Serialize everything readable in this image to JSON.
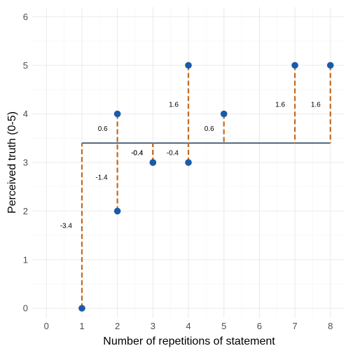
{
  "chart_data": {
    "type": "scatter",
    "title": "",
    "xlabel": "Number of repetitions of statement",
    "ylabel": "Perceived truth (0-5)",
    "x_ticks": [
      0,
      1,
      2,
      3,
      4,
      5,
      6,
      7,
      8
    ],
    "y_ticks": [
      0,
      1,
      2,
      3,
      4,
      5,
      6
    ],
    "xlim": [
      -0.4,
      8.4
    ],
    "ylim": [
      -0.2,
      6.2
    ],
    "grid": true,
    "points": [
      {
        "x": 1,
        "y": 0
      },
      {
        "x": 2,
        "y": 2
      },
      {
        "x": 2,
        "y": 4
      },
      {
        "x": 3,
        "y": 3
      },
      {
        "x": 3,
        "y": 3
      },
      {
        "x": 4,
        "y": 3
      },
      {
        "x": 4,
        "y": 5
      },
      {
        "x": 5,
        "y": 4
      },
      {
        "x": 7,
        "y": 5
      },
      {
        "x": 8,
        "y": 5
      }
    ],
    "mean_line": {
      "y": 3.4,
      "x_start": 1,
      "x_end": 8
    },
    "residual_labels": [
      {
        "x": 1,
        "y": 0,
        "text": "-3.4"
      },
      {
        "x": 2,
        "y": 2,
        "text": "-1.4"
      },
      {
        "x": 2,
        "y": 4,
        "text": "0.6"
      },
      {
        "x": 3,
        "y": 3,
        "text": "-0.4"
      },
      {
        "x": 3,
        "y": 3,
        "text": "-0.4"
      },
      {
        "x": 4,
        "y": 3,
        "text": "-0.4"
      },
      {
        "x": 4,
        "y": 5,
        "text": "1.6"
      },
      {
        "x": 5,
        "y": 4,
        "text": "0.6"
      },
      {
        "x": 7,
        "y": 5,
        "text": "1.6"
      },
      {
        "x": 8,
        "y": 5,
        "text": "1.6"
      }
    ],
    "colors": {
      "point": "#1a5aab",
      "residual": "#c8691c",
      "mean_line": "#1f3b57",
      "grid_major": "#ebebeb",
      "grid_minor": "#f5f5f5"
    }
  }
}
